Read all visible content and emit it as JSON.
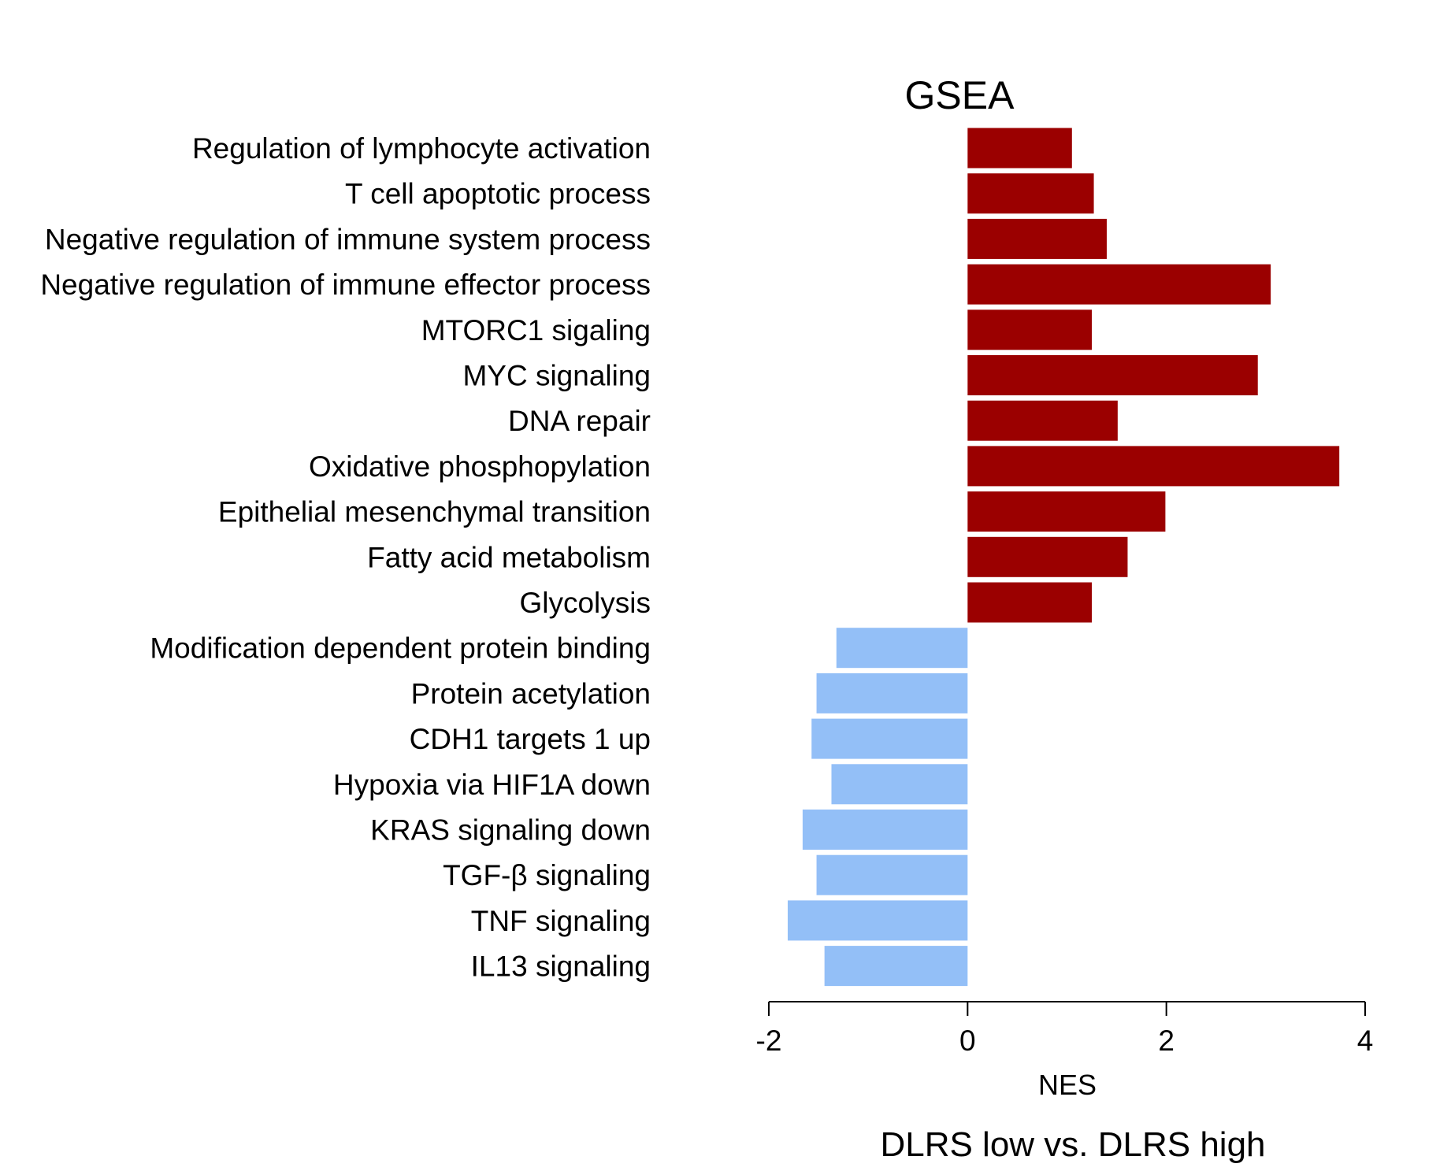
{
  "chart_data": {
    "type": "bar",
    "orientation": "horizontal",
    "title": "GSEA",
    "xlabel": "NES",
    "subtitle": "DLRS low vs. DLRS high",
    "xlim": [
      -2,
      4
    ],
    "xticks": [
      "-2",
      "0",
      "2",
      "4"
    ],
    "tick_values": [
      -2,
      0,
      2,
      4
    ],
    "categories": [
      "Regulation of lymphocyte activation",
      "T cell apoptotic process",
      "Negative regulation of immune system process",
      "Negative regulation of immune effector process",
      "MTORC1 sigaling",
      "MYC signaling",
      "DNA repair",
      "Oxidative phosphopylation",
      "Epithelial mesenchymal transition",
      "Fatty acid metabolism",
      "Glycolysis",
      "Modification dependent protein binding",
      "Protein acetylation",
      "CDH1 targets 1 up",
      "Hypoxia via HIF1A down",
      "KRAS signaling down",
      "TGF-β signaling",
      "TNF signaling",
      "IL13 signaling"
    ],
    "values": [
      1.05,
      1.27,
      1.4,
      3.05,
      1.25,
      2.92,
      1.51,
      3.74,
      1.99,
      1.61,
      1.25,
      -1.32,
      -1.52,
      -1.57,
      -1.37,
      -1.66,
      -1.52,
      -1.81,
      -1.44
    ],
    "colors": {
      "positive": "#9b0000",
      "negative": "#93bff7",
      "axis": "#000000"
    }
  }
}
